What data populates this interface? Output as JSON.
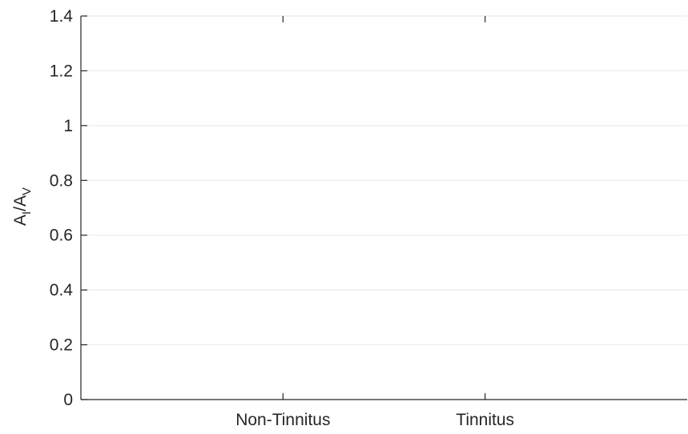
{
  "chart_data": {
    "type": "bar",
    "categories": [
      "Non-Tinnitus",
      "Tinnitus"
    ],
    "series": [
      {
        "values": [
          null,
          null
        ]
      }
    ],
    "xlabel": "",
    "ylabel": {
      "main_a": "A",
      "sub_a": "I",
      "slash": "/",
      "main_b": "A",
      "sub_b": "V"
    },
    "ylim": [
      0,
      1.4
    ],
    "yticks": [
      0,
      0.2,
      0.4,
      0.6,
      0.8,
      1,
      1.2,
      1.4
    ],
    "ytick_labels": [
      "0",
      "0.2",
      "0.4",
      "0.6",
      "0.8",
      "1",
      "1.2",
      "1.4"
    ],
    "grid": "horizontal",
    "colors": {
      "axis": "#262626",
      "grid": "#ebebeb",
      "text": "#262626"
    }
  }
}
